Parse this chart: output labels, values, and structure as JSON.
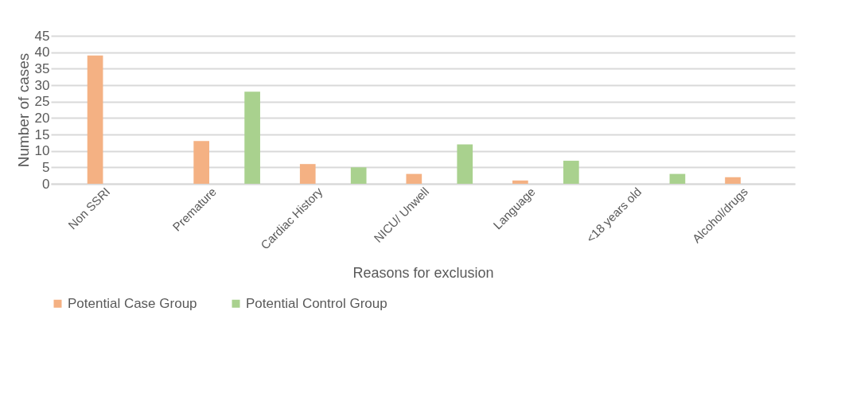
{
  "chart_data": {
    "type": "bar",
    "xlabel": "Reasons for exclusion",
    "ylabel": "Number of cases",
    "categories": [
      "Non SSRI",
      "Premature",
      "Cardiac History",
      "NICU/ Unwell",
      "Language",
      "<18 years old",
      "Alcohol/drugs"
    ],
    "series": [
      {
        "name": "Potential Case Group",
        "color": "#f4b183",
        "values": [
          39,
          13,
          6,
          3,
          1,
          0,
          2
        ]
      },
      {
        "name": "Potential Control Group",
        "color": "#a9d18e",
        "values": [
          0,
          28,
          5,
          12,
          7,
          3,
          0
        ]
      }
    ],
    "ylim": [
      0,
      45
    ],
    "yticks": [
      0,
      5,
      10,
      15,
      20,
      25,
      30,
      35,
      40,
      45
    ],
    "grid": "y",
    "legend": "bottom"
  }
}
